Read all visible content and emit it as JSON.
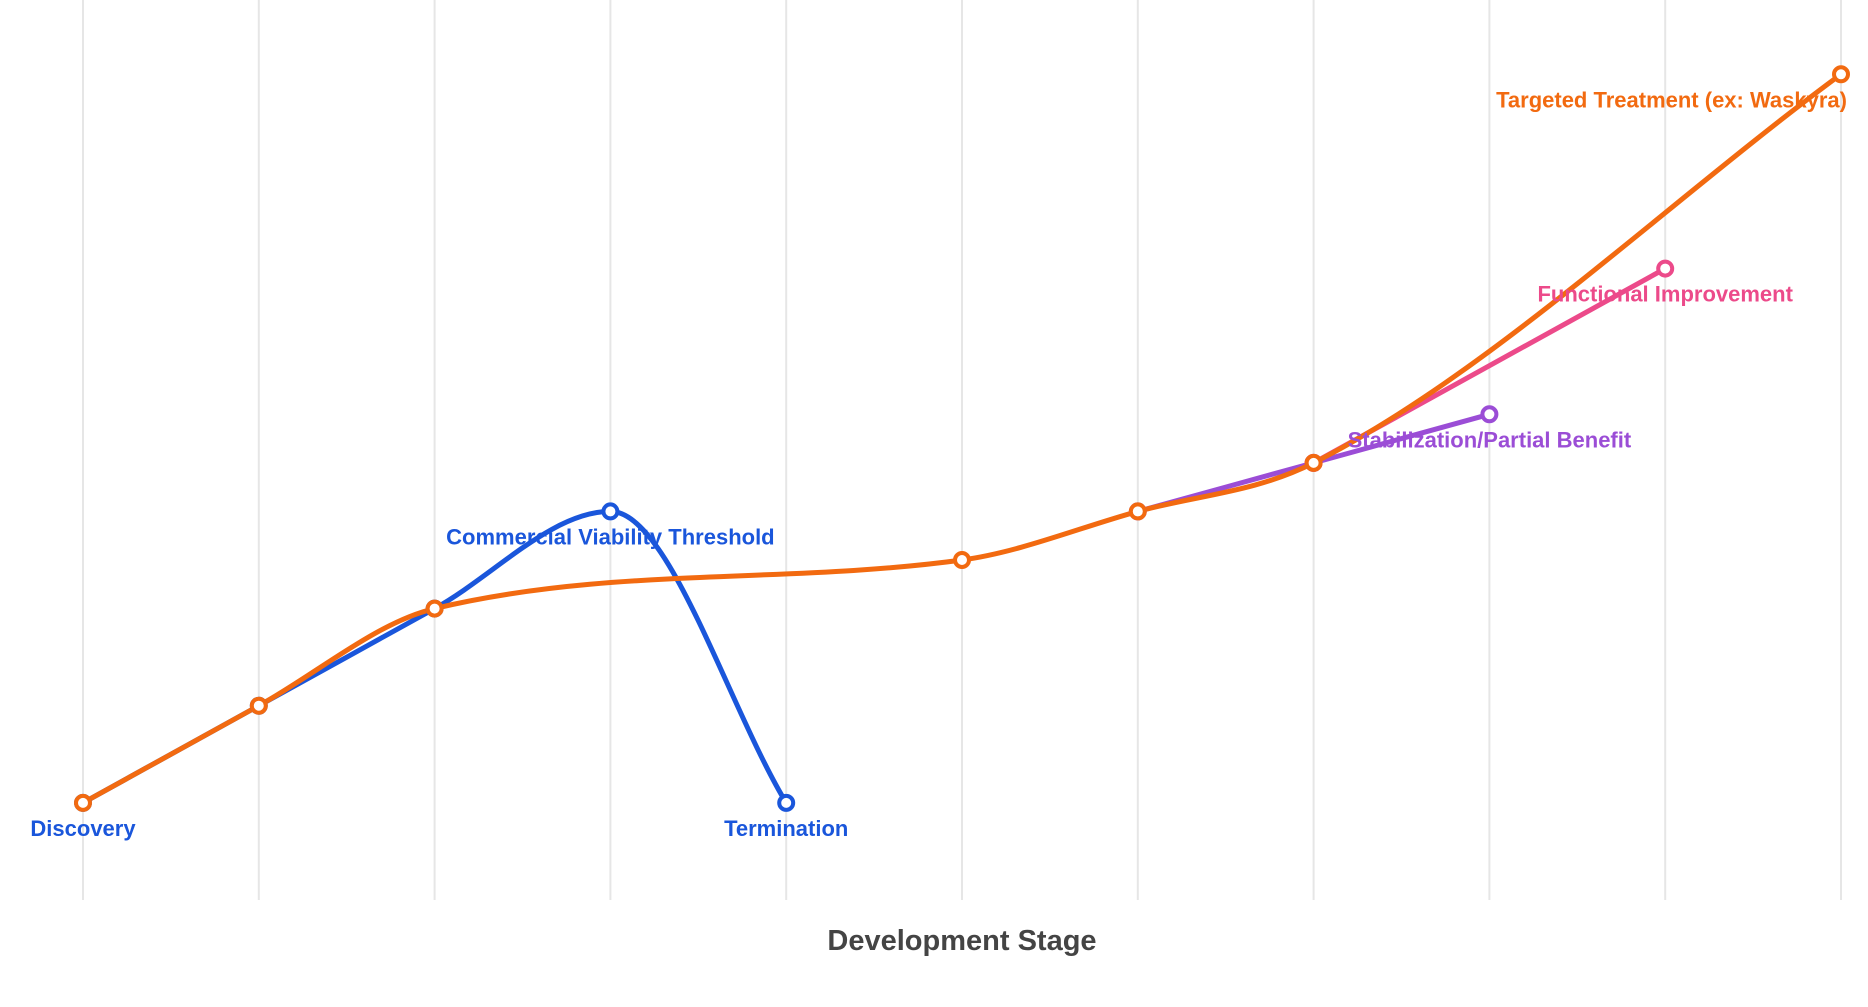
{
  "chart_data": {
    "type": "line",
    "title": "",
    "xlabel": "Development Stage",
    "ylabel": "",
    "x": [
      0,
      1,
      2,
      3,
      4,
      5,
      6,
      7,
      8,
      9,
      10
    ],
    "xlim": [
      0,
      10
    ],
    "ylim": [
      0,
      17.5
    ],
    "grid": {
      "x": true,
      "y": false
    },
    "series": [
      {
        "color": "#1a56db",
        "points": [
          [
            0,
            2
          ],
          [
            1,
            4
          ],
          [
            2,
            6
          ],
          [
            3,
            8
          ],
          [
            4,
            2
          ]
        ]
      },
      {
        "color": "#9b4dd6",
        "points": [
          [
            6,
            8
          ],
          [
            7,
            9
          ],
          [
            8,
            10
          ]
        ]
      },
      {
        "color": "#ec4a8a",
        "points": [
          [
            7,
            9
          ],
          [
            9,
            13
          ]
        ]
      },
      {
        "color": "#f26a10",
        "points": [
          [
            0,
            2
          ],
          [
            1,
            4
          ],
          [
            2,
            6
          ],
          [
            5,
            7
          ],
          [
            6,
            8
          ],
          [
            7,
            9
          ],
          [
            10,
            17
          ]
        ]
      }
    ],
    "annotations": [
      {
        "text": "Discovery",
        "x": 0,
        "y": 2,
        "position": "below",
        "color": "#1a56db"
      },
      {
        "text": "Commercial Viability Threshold",
        "x": 3,
        "y": 8,
        "position": "below",
        "color": "#1a56db"
      },
      {
        "text": "Termination",
        "x": 4,
        "y": 2,
        "position": "below",
        "color": "#1a56db"
      },
      {
        "text": "Stabilization/Partial Benefit",
        "x": 8,
        "y": 10,
        "position": "below",
        "color": "#9b4dd6"
      },
      {
        "text": "Functional Improvement",
        "x": 9,
        "y": 13,
        "position": "below",
        "color": "#ec4a8a"
      },
      {
        "text": "Targeted Treatment (ex: Waskyra)",
        "x": 10,
        "y": 17,
        "position": "below-left",
        "color": "#f26a10"
      }
    ]
  }
}
